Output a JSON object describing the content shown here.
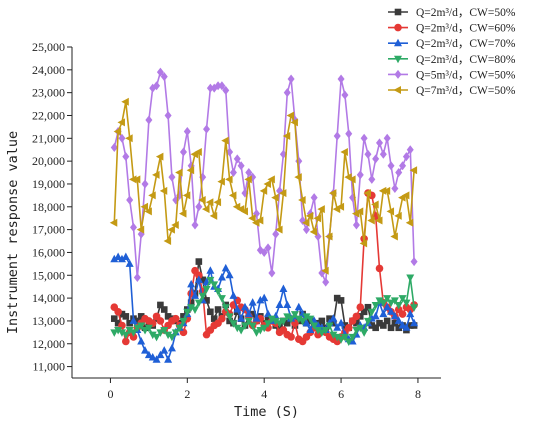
{
  "chart_data": {
    "type": "line",
    "xlabel": "Time (S)",
    "ylabel": "Instrument response value",
    "xlim": [
      -1,
      8.6
    ],
    "ylim": [
      10500,
      25000
    ],
    "x_ticks": [
      0,
      2,
      4,
      6,
      8
    ],
    "y_ticks": [
      11000,
      12000,
      13000,
      14000,
      15000,
      16000,
      17000,
      18000,
      19000,
      20000,
      21000,
      22000,
      23000,
      24000,
      25000
    ],
    "y_tick_labels": [
      "11,000",
      "12,000",
      "13,000",
      "14,000",
      "15,000",
      "16,000",
      "17,000",
      "18,000",
      "19,000",
      "20,000",
      "21,000",
      "22,000",
      "23,000",
      "24,000",
      "25,000"
    ],
    "legend_position": "top-right",
    "series": [
      {
        "name": "Q=2m³/d，CW=50%",
        "color": "#3a3a3a",
        "marker": "square",
        "x": [
          0.1,
          0.2,
          0.3,
          0.4,
          0.5,
          0.6,
          0.7,
          0.8,
          0.9,
          1.0,
          1.1,
          1.2,
          1.3,
          1.4,
          1.5,
          1.6,
          1.7,
          1.8,
          1.9,
          2.0,
          2.1,
          2.2,
          2.3,
          2.4,
          2.5,
          2.6,
          2.7,
          2.8,
          2.9,
          3.0,
          3.1,
          3.2,
          3.3,
          3.4,
          3.5,
          3.6,
          3.7,
          3.8,
          3.9,
          4.0,
          4.1,
          4.2,
          4.3,
          4.4,
          4.5,
          4.6,
          4.7,
          4.8,
          4.9,
          5.0,
          5.1,
          5.2,
          5.3,
          5.4,
          5.5,
          5.6,
          5.7,
          5.8,
          5.9,
          6.0,
          6.1,
          6.2,
          6.3,
          6.4,
          6.5,
          6.6,
          6.7,
          6.8,
          6.9,
          7.0,
          7.1,
          7.2,
          7.3,
          7.4,
          7.5,
          7.6,
          7.7,
          7.8,
          7.9
        ],
        "y": [
          13100,
          12900,
          13300,
          13200,
          12900,
          13100,
          13000,
          13200,
          12700,
          12900,
          12800,
          13100,
          13700,
          13500,
          13200,
          13100,
          13000,
          12900,
          13200,
          13500,
          13800,
          14200,
          15600,
          14800,
          13900,
          13400,
          13100,
          13500,
          13200,
          13700,
          13000,
          12900,
          13400,
          13100,
          12800,
          13200,
          13300,
          13000,
          13200,
          12900,
          13100,
          13000,
          12800,
          12700,
          13000,
          12900,
          13100,
          12800,
          13000,
          13300,
          12900,
          13000,
          12800,
          12900,
          13000,
          12700,
          13100,
          12900,
          14000,
          13900,
          12800,
          12700,
          13000,
          12900,
          13200,
          13400,
          13600,
          12800,
          12700,
          12900,
          12800,
          13000,
          12700,
          12900,
          12700,
          12800,
          12600,
          12800,
          12800
        ]
      },
      {
        "name": "Q=2m³/d，CW=60%",
        "color": "#e53935",
        "marker": "circle",
        "x": [
          0.1,
          0.2,
          0.3,
          0.4,
          0.5,
          0.6,
          0.7,
          0.8,
          0.9,
          1.0,
          1.1,
          1.2,
          1.3,
          1.4,
          1.5,
          1.6,
          1.7,
          1.8,
          1.9,
          2.0,
          2.1,
          2.2,
          2.3,
          2.4,
          2.5,
          2.6,
          2.7,
          2.8,
          2.9,
          3.0,
          3.1,
          3.2,
          3.3,
          3.4,
          3.5,
          3.6,
          3.7,
          3.8,
          3.9,
          4.0,
          4.1,
          4.2,
          4.3,
          4.4,
          4.5,
          4.6,
          4.7,
          4.8,
          4.9,
          5.0,
          5.1,
          5.2,
          5.3,
          5.4,
          5.5,
          5.6,
          5.7,
          5.8,
          5.9,
          6.0,
          6.1,
          6.2,
          6.3,
          6.4,
          6.5,
          6.6,
          6.7,
          6.8,
          6.9,
          7.0,
          7.1,
          7.2,
          7.3,
          7.4,
          7.5,
          7.6,
          7.7,
          7.8,
          7.9
        ],
        "y": [
          13600,
          13400,
          12800,
          12100,
          12500,
          12300,
          12700,
          12900,
          13100,
          13000,
          12900,
          13200,
          13000,
          12600,
          12800,
          13000,
          13100,
          12800,
          12500,
          13100,
          14200,
          15200,
          15000,
          14300,
          12400,
          12600,
          12800,
          12900,
          13100,
          13400,
          13300,
          13700,
          13900,
          13600,
          13500,
          13200,
          12800,
          13000,
          13100,
          12800,
          12700,
          13000,
          12900,
          12500,
          12600,
          12400,
          12300,
          12900,
          12200,
          12100,
          12300,
          12500,
          12700,
          12400,
          12600,
          12500,
          12300,
          12200,
          12100,
          12300,
          12500,
          12700,
          13000,
          13200,
          13600,
          16600,
          18600,
          18500,
          17600,
          15300,
          13800,
          13600,
          13400,
          13200,
          13500,
          13300,
          13600,
          13500,
          13700
        ]
      },
      {
        "name": "Q=2m³/d，CW=70%",
        "color": "#1f5fd6",
        "marker": "triangle-up",
        "x": [
          0.1,
          0.2,
          0.3,
          0.4,
          0.5,
          0.6,
          0.7,
          0.8,
          0.9,
          1.0,
          1.1,
          1.2,
          1.3,
          1.4,
          1.5,
          1.6,
          1.7,
          1.8,
          1.9,
          2.0,
          2.1,
          2.2,
          2.3,
          2.4,
          2.5,
          2.6,
          2.7,
          2.8,
          2.9,
          3.0,
          3.1,
          3.2,
          3.3,
          3.4,
          3.5,
          3.6,
          3.7,
          3.8,
          3.9,
          4.0,
          4.1,
          4.2,
          4.3,
          4.4,
          4.5,
          4.6,
          4.7,
          4.8,
          4.9,
          5.0,
          5.1,
          5.2,
          5.3,
          5.4,
          5.5,
          5.6,
          5.7,
          5.8,
          5.9,
          6.0,
          6.1,
          6.2,
          6.3,
          6.4,
          6.5,
          6.6,
          6.7,
          6.8,
          6.9,
          7.0,
          7.1,
          7.2,
          7.3,
          7.4,
          7.5,
          7.6,
          7.7,
          7.8,
          7.9
        ],
        "y": [
          15700,
          15800,
          15700,
          15800,
          15500,
          13000,
          12600,
          12100,
          11700,
          11500,
          11400,
          11300,
          11500,
          11700,
          11300,
          11800,
          12500,
          12700,
          12900,
          13300,
          14600,
          14100,
          14800,
          13900,
          14700,
          15200,
          14500,
          14400,
          14900,
          15300,
          15000,
          14100,
          13500,
          13100,
          13600,
          13300,
          13800,
          13100,
          13900,
          14000,
          13300,
          13000,
          13200,
          13700,
          14400,
          13700,
          13100,
          13200,
          13600,
          13300,
          12900,
          12600,
          13000,
          12800,
          12700,
          12600,
          12900,
          13100,
          12700,
          12900,
          12400,
          12200,
          12100,
          12400,
          12800,
          12700,
          12900,
          13100,
          13200,
          13800,
          13300,
          13600,
          13400,
          13200,
          13000,
          12800,
          12700,
          13300,
          12900
        ]
      },
      {
        "name": "Q=2m³/d，CW=80%",
        "color": "#2eaa66",
        "marker": "triangle-down",
        "x": [
          0.1,
          0.2,
          0.3,
          0.4,
          0.5,
          0.6,
          0.7,
          0.8,
          0.9,
          1.0,
          1.1,
          1.2,
          1.3,
          1.4,
          1.5,
          1.6,
          1.7,
          1.8,
          1.9,
          2.0,
          2.1,
          2.2,
          2.3,
          2.4,
          2.5,
          2.6,
          2.7,
          2.8,
          2.9,
          3.0,
          3.1,
          3.2,
          3.3,
          3.4,
          3.5,
          3.6,
          3.7,
          3.8,
          3.9,
          4.0,
          4.1,
          4.2,
          4.3,
          4.4,
          4.5,
          4.6,
          4.7,
          4.8,
          4.9,
          5.0,
          5.1,
          5.2,
          5.3,
          5.4,
          5.5,
          5.6,
          5.7,
          5.8,
          5.9,
          6.0,
          6.1,
          6.2,
          6.3,
          6.4,
          6.5,
          6.6,
          6.7,
          6.8,
          6.9,
          7.0,
          7.1,
          7.2,
          7.3,
          7.4,
          7.5,
          7.6,
          7.7,
          7.8,
          7.9
        ],
        "y": [
          12500,
          12600,
          12500,
          12400,
          12600,
          12500,
          12700,
          12800,
          12600,
          12700,
          12400,
          12300,
          12500,
          12600,
          12400,
          12300,
          12500,
          12700,
          13000,
          13400,
          13600,
          13500,
          13800,
          14100,
          14400,
          14800,
          14600,
          14300,
          14000,
          13600,
          13200,
          12900,
          12700,
          12600,
          12800,
          13000,
          12800,
          12500,
          12600,
          12700,
          12900,
          13100,
          13000,
          12900,
          13000,
          13200,
          13100,
          13300,
          13100,
          13000,
          13200,
          13100,
          12800,
          12600,
          12500,
          12600,
          12800,
          12400,
          12300,
          12200,
          12300,
          12100,
          12300,
          12600,
          12700,
          12500,
          13000,
          13400,
          13700,
          13900,
          13800,
          14000,
          13800,
          13900,
          13700,
          14000,
          13800,
          14900,
          13600
        ]
      },
      {
        "name": "Q=5m³/d，CW=50%",
        "color": "#b27ae6",
        "marker": "diamond",
        "x": [
          0.1,
          0.2,
          0.3,
          0.4,
          0.5,
          0.6,
          0.7,
          0.8,
          0.9,
          1.0,
          1.1,
          1.2,
          1.3,
          1.4,
          1.5,
          1.6,
          1.7,
          1.8,
          1.9,
          2.0,
          2.1,
          2.2,
          2.3,
          2.4,
          2.5,
          2.6,
          2.7,
          2.8,
          2.9,
          3.0,
          3.1,
          3.2,
          3.3,
          3.4,
          3.5,
          3.6,
          3.7,
          3.8,
          3.9,
          4.0,
          4.1,
          4.2,
          4.3,
          4.4,
          4.5,
          4.6,
          4.7,
          4.8,
          4.9,
          5.0,
          5.1,
          5.2,
          5.3,
          5.4,
          5.5,
          5.6,
          5.7,
          5.8,
          5.9,
          6.0,
          6.1,
          6.2,
          6.3,
          6.4,
          6.5,
          6.6,
          6.7,
          6.8,
          6.9,
          7.0,
          7.1,
          7.2,
          7.3,
          7.4,
          7.5,
          7.6,
          7.7,
          7.8,
          7.9
        ],
        "y": [
          20600,
          21300,
          21000,
          20200,
          18300,
          17100,
          14900,
          16800,
          19000,
          21800,
          23200,
          23300,
          23900,
          23700,
          22000,
          19300,
          18300,
          18500,
          20400,
          21300,
          19800,
          17200,
          18000,
          19300,
          21400,
          23200,
          23200,
          23300,
          23300,
          23100,
          20400,
          19500,
          20100,
          19800,
          18600,
          19500,
          19300,
          17700,
          16100,
          16000,
          16200,
          15100,
          16800,
          18700,
          20300,
          23000,
          23600,
          21800,
          20000,
          17400,
          17000,
          17700,
          18400,
          16700,
          15100,
          14700,
          16700,
          18600,
          21100,
          23600,
          22900,
          21200,
          18400,
          17200,
          19400,
          21000,
          20300,
          19200,
          20100,
          20800,
          20300,
          21000,
          19800,
          18800,
          19500,
          19800,
          20200,
          20500,
          15600
        ]
      },
      {
        "name": "Q=7m³/d，CW=50%",
        "color": "#c49a14",
        "marker": "triangle-left",
        "x": [
          0.1,
          0.2,
          0.3,
          0.4,
          0.5,
          0.6,
          0.7,
          0.8,
          0.9,
          1.0,
          1.1,
          1.2,
          1.3,
          1.4,
          1.5,
          1.6,
          1.7,
          1.8,
          1.9,
          2.0,
          2.1,
          2.2,
          2.3,
          2.4,
          2.5,
          2.6,
          2.7,
          2.8,
          2.9,
          3.0,
          3.1,
          3.2,
          3.3,
          3.4,
          3.5,
          3.6,
          3.7,
          3.8,
          3.9,
          4.0,
          4.1,
          4.2,
          4.3,
          4.4,
          4.5,
          4.6,
          4.7,
          4.8,
          4.9,
          5.0,
          5.1,
          5.2,
          5.3,
          5.4,
          5.5,
          5.6,
          5.7,
          5.8,
          5.9,
          6.0,
          6.1,
          6.2,
          6.3,
          6.4,
          6.5,
          6.6,
          6.7,
          6.8,
          6.9,
          7.0,
          7.1,
          7.2,
          7.3,
          7.4,
          7.5,
          7.6,
          7.7,
          7.8,
          7.9
        ],
        "y": [
          17300,
          21300,
          21700,
          22600,
          21000,
          19200,
          19200,
          17000,
          18000,
          17800,
          18500,
          19400,
          20200,
          18700,
          16500,
          17000,
          17200,
          19500,
          17700,
          18500,
          19600,
          20300,
          20400,
          18300,
          17900,
          18200,
          17600,
          18200,
          19100,
          20900,
          19200,
          18500,
          18000,
          17900,
          17800,
          19200,
          17500,
          17300,
          17400,
          18700,
          19000,
          19200,
          18400,
          17000,
          18600,
          21100,
          22000,
          21700,
          19300,
          18300,
          17300,
          17600,
          16900,
          17500,
          17900,
          15200,
          16700,
          18600,
          17900,
          18000,
          20400,
          19300,
          19200,
          17700,
          17800,
          16400,
          18600,
          17400,
          18100,
          17400,
          18700,
          18700,
          17800,
          16700,
          17600,
          18400,
          18500,
          17300,
          19600
        ]
      }
    ]
  }
}
